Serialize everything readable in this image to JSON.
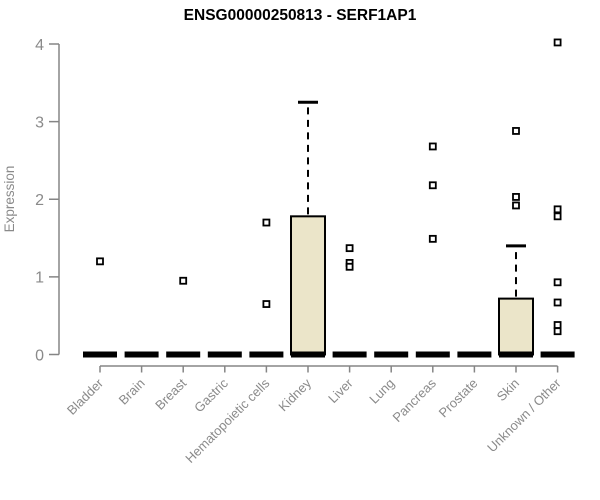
{
  "chart_data": {
    "type": "boxplot",
    "title": "ENSG00000250813 - SERF1AP1",
    "ylabel": "Expression",
    "xlabel": "",
    "ylim": [
      0,
      4.1
    ],
    "yticks": [
      0,
      1,
      2,
      3,
      4
    ],
    "grid": false,
    "legend": "none",
    "categories": [
      "Bladder",
      "Brain",
      "Breast",
      "Gastric",
      "Hematopoietic cells",
      "Kidney",
      "Liver",
      "Lung",
      "Pancreas",
      "Prostate",
      "Skin",
      "Unknown / Other"
    ],
    "boxes": [
      {
        "category": "Bladder",
        "whisker_low": 0,
        "q1": 0,
        "median": 0,
        "q3": 0,
        "whisker_high": 0,
        "outliers": [
          1.2
        ]
      },
      {
        "category": "Brain",
        "whisker_low": 0,
        "q1": 0,
        "median": 0,
        "q3": 0,
        "whisker_high": 0,
        "outliers": []
      },
      {
        "category": "Breast",
        "whisker_low": 0,
        "q1": 0,
        "median": 0,
        "q3": 0,
        "whisker_high": 0,
        "outliers": [
          0.95
        ]
      },
      {
        "category": "Gastric",
        "whisker_low": 0,
        "q1": 0,
        "median": 0,
        "q3": 0,
        "whisker_high": 0,
        "outliers": []
      },
      {
        "category": "Hematopoietic cells",
        "whisker_low": 0,
        "q1": 0,
        "median": 0,
        "q3": 0,
        "whisker_high": 0,
        "outliers": [
          1.7,
          0.65
        ]
      },
      {
        "category": "Kidney",
        "whisker_low": 0,
        "q1": 0,
        "median": 0,
        "q3": 1.78,
        "whisker_high": 3.25,
        "outliers": []
      },
      {
        "category": "Liver",
        "whisker_low": 0,
        "q1": 0,
        "median": 0,
        "q3": 0,
        "whisker_high": 0,
        "outliers": [
          1.37,
          1.18,
          1.13
        ]
      },
      {
        "category": "Lung",
        "whisker_low": 0,
        "q1": 0,
        "median": 0,
        "q3": 0,
        "whisker_high": 0,
        "outliers": []
      },
      {
        "category": "Pancreas",
        "whisker_low": 0,
        "q1": 0,
        "median": 0,
        "q3": 0,
        "whisker_high": 0,
        "outliers": [
          2.68,
          2.18,
          1.49
        ]
      },
      {
        "category": "Prostate",
        "whisker_low": 0,
        "q1": 0,
        "median": 0,
        "q3": 0,
        "whisker_high": 0,
        "outliers": []
      },
      {
        "category": "Skin",
        "whisker_low": 0,
        "q1": 0,
        "median": 0,
        "q3": 0.72,
        "whisker_high": 1.4,
        "outliers": [
          2.88,
          2.03,
          1.92
        ]
      },
      {
        "category": "Unknown / Other",
        "whisker_low": 0,
        "q1": 0,
        "median": 0,
        "q3": 0,
        "whisker_high": 0,
        "outliers": [
          4.02,
          1.87,
          1.78,
          0.93,
          0.67,
          0.38,
          0.3
        ]
      }
    ],
    "colors": {
      "box_fill": "#EBE5C9",
      "box_border": "#000000",
      "median": "#000000",
      "whisker": "#000000",
      "outlier_stroke": "#000000",
      "outlier_fill": "#ffffff",
      "axis": "#858585",
      "tick_label": "#8a8a8a",
      "title": "#000000",
      "background": "#ffffff"
    }
  }
}
